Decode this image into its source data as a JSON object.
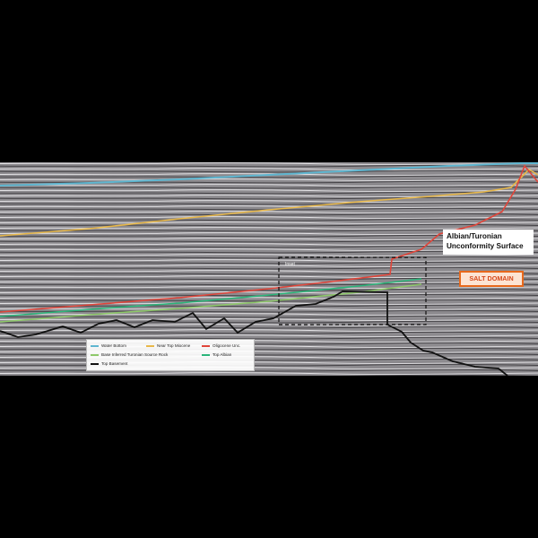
{
  "callout": {
    "line1": "Albian/Turonian",
    "line2": "Unconformity Surface"
  },
  "salt_label": "SALT DOMAIN",
  "inset_label": "Inset",
  "legend": {
    "items": [
      {
        "label": "Water Bottom",
        "color": "#5fb6d0"
      },
      {
        "label": "Near Top Miocene",
        "color": "#e8b84a"
      },
      {
        "label": "Oligocene Unc.",
        "color": "#e0453a"
      },
      {
        "label": "Base Inferred Turonian Source Rock",
        "color": "#8ec86a"
      },
      {
        "label": "Top Albian",
        "color": "#2bb57a"
      },
      {
        "label": "Top Basement",
        "color": "#111111"
      }
    ]
  },
  "colors": {
    "background": "#000000",
    "seismic": "#8c8a8e",
    "callout_border": "#e0453a",
    "salt_border": "#e8691c"
  }
}
